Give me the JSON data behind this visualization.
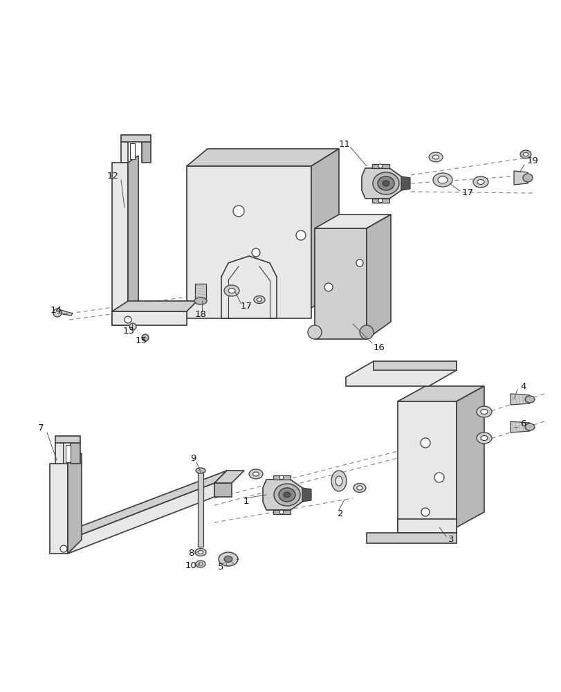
{
  "figsize": [
    8.12,
    10.0
  ],
  "dpi": 100,
  "bg": "white",
  "lc": "#3a3a3a",
  "fc_light": "#e8e8e8",
  "fc_mid": "#d0d0d0",
  "fc_dark": "#b8b8b8",
  "fc_darker": "#a0a0a0",
  "lw_main": 1.2,
  "lw_thin": 0.8,
  "dash_color": "#777777",
  "label_fs": 9.5
}
